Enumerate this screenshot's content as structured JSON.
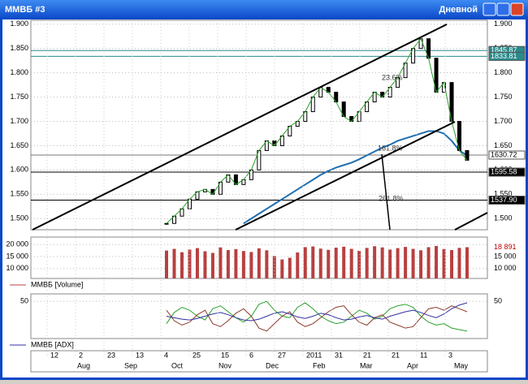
{
  "window": {
    "title": "ММВБ #3",
    "timeframe": "Дневной"
  },
  "price": {
    "ylim": [
      1477,
      1908
    ],
    "yticks": [
      {
        "value": 1900,
        "label": "1.900"
      },
      {
        "value": 1850,
        "label": "1.850"
      },
      {
        "value": 1800,
        "label": "1.800"
      },
      {
        "value": 1750,
        "label": "1.750"
      },
      {
        "value": 1700,
        "label": "1.700"
      },
      {
        "value": 1650,
        "label": "1.650"
      },
      {
        "value": 1600,
        "label": "1.600"
      },
      {
        "value": 1550,
        "label": "1.550"
      },
      {
        "value": 1500,
        "label": "1.500"
      }
    ],
    "close": [
      1490,
      1505,
      1520,
      1540,
      1555,
      1560,
      1550,
      1575,
      1590,
      1570,
      1580,
      1600,
      1640,
      1660,
      1650,
      1670,
      1690,
      1700,
      1720,
      1750,
      1770,
      1760,
      1740,
      1710,
      1700,
      1720,
      1740,
      1760,
      1750,
      1770,
      1790,
      1820,
      1850,
      1870,
      1830,
      1760,
      1780,
      1700,
      1640,
      1620
    ],
    "ma": [
      null,
      null,
      null,
      null,
      null,
      null,
      null,
      null,
      null,
      null,
      1490,
      1500,
      1510,
      1520,
      1530,
      1540,
      1550,
      1560,
      1570,
      1580,
      1590,
      1598,
      1605,
      1610,
      1615,
      1622,
      1630,
      1638,
      1646,
      1652,
      1660,
      1665,
      1670,
      1675,
      1680,
      1680,
      1675,
      1660,
      1640,
      1630
    ],
    "levels": [
      {
        "value": 1845.87,
        "label": "1845.87",
        "color": "#2a8a8a"
      },
      {
        "value": 1833.81,
        "label": "1833.81",
        "color": "#2a8a8a"
      },
      {
        "value": 1630.72,
        "label": "1630.72",
        "color": "#ffffff"
      },
      {
        "value": 1595.58,
        "label": "1595.58",
        "color": "#000000"
      },
      {
        "value": 1537.9,
        "label": "1537.90",
        "color": "#000000"
      }
    ],
    "annotations": [
      "23.6%",
      "161.8%",
      "261.8%"
    ]
  },
  "volume": {
    "legend": "ММВБ [Volume]",
    "ylim": [
      5900,
      23100
    ],
    "yticks": [
      {
        "value": 20000,
        "label": "20 000"
      },
      {
        "value": 15000,
        "label": "15 000"
      },
      {
        "value": 10000,
        "label": "10 000"
      }
    ],
    "last": {
      "value": 18891,
      "label": "18 891"
    },
    "values": [
      17500,
      18200,
      16800,
      17900,
      18500,
      17200,
      16500,
      18800,
      17700,
      18100,
      17300,
      16900,
      18400,
      17600,
      15200,
      13800,
      14500,
      16700,
      18900,
      19200,
      18300,
      17800,
      18700,
      19100,
      18200,
      17400,
      18600,
      19300,
      18800,
      17900,
      18500,
      19000,
      18200,
      17600,
      18900,
      19400,
      18100,
      17700,
      18600,
      18891
    ]
  },
  "adx": {
    "legend": "ММВБ [ADX]",
    "ylim": [
      0,
      60
    ],
    "yticks": [
      50
    ],
    "adx": [
      30,
      28,
      26,
      25,
      27,
      30,
      33,
      35,
      32,
      28,
      25,
      24,
      26,
      30,
      34,
      36,
      33,
      29,
      27,
      30,
      34,
      32,
      28,
      25,
      26,
      29,
      31,
      28,
      26,
      30,
      33,
      36,
      38,
      35,
      31,
      28,
      33,
      40,
      45,
      48
    ],
    "plus_di": [
      20,
      35,
      42,
      38,
      30,
      25,
      40,
      44,
      36,
      28,
      22,
      30,
      46,
      50,
      38,
      30,
      28,
      42,
      48,
      40,
      30,
      24,
      20,
      22,
      30,
      38,
      34,
      26,
      30,
      40,
      44,
      46,
      42,
      30,
      22,
      18,
      20,
      14,
      12,
      10
    ],
    "minus_di": [
      38,
      24,
      18,
      22,
      32,
      38,
      20,
      16,
      24,
      34,
      40,
      30,
      14,
      10,
      20,
      30,
      36,
      22,
      16,
      20,
      28,
      36,
      42,
      44,
      32,
      22,
      18,
      28,
      32,
      22,
      18,
      14,
      16,
      28,
      40,
      42,
      38,
      44,
      40,
      36
    ]
  },
  "dates": {
    "days": [
      "12",
      "2",
      "23",
      "13",
      "4",
      "25",
      "15",
      "6",
      "27",
      "2011",
      "31",
      "21",
      "21",
      "11",
      "3"
    ],
    "months": [
      "Aug",
      "Sep",
      "Oct",
      "Nov",
      "Dec",
      "Feb",
      "Mar",
      "Apr",
      "May"
    ]
  }
}
